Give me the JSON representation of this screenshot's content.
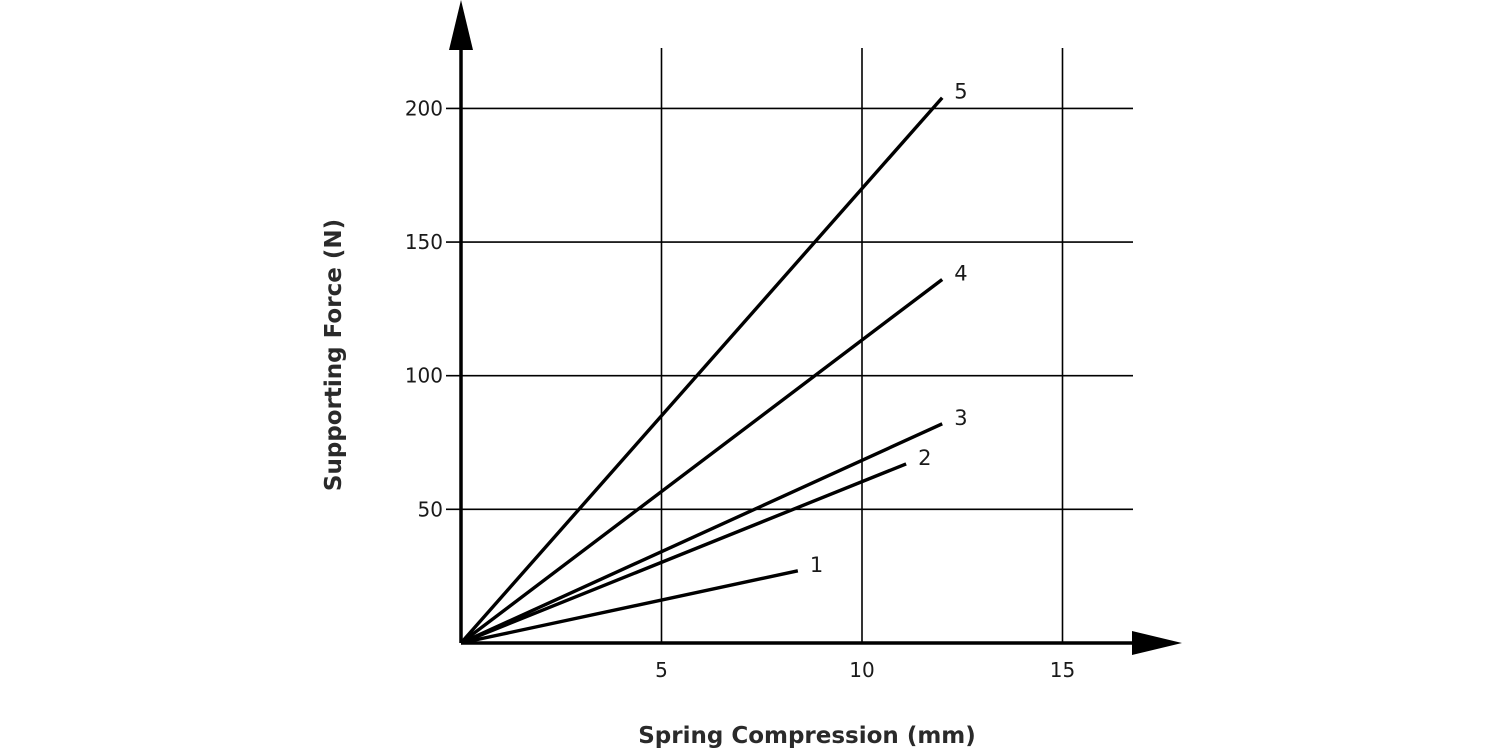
{
  "chart_data": {
    "type": "line",
    "title": "",
    "xlabel": "Spring Compression (mm)",
    "ylabel": "Supporting Force (N)",
    "xlim": [
      0,
      17
    ],
    "ylim": [
      0,
      220
    ],
    "xticks": [
      5,
      10,
      15
    ],
    "yticks": [
      50,
      100,
      150,
      200
    ],
    "grid": true,
    "line_color": "#000000",
    "series": [
      {
        "name": "1",
        "x": [
          0,
          8.4
        ],
        "y": [
          0,
          27
        ]
      },
      {
        "name": "2",
        "x": [
          0,
          11.1
        ],
        "y": [
          0,
          67
        ]
      },
      {
        "name": "3",
        "x": [
          0,
          12.0
        ],
        "y": [
          0,
          82
        ]
      },
      {
        "name": "4",
        "x": [
          0,
          12.0
        ],
        "y": [
          0,
          136
        ]
      },
      {
        "name": "5",
        "x": [
          0,
          12.0
        ],
        "y": [
          0,
          204
        ]
      }
    ]
  }
}
